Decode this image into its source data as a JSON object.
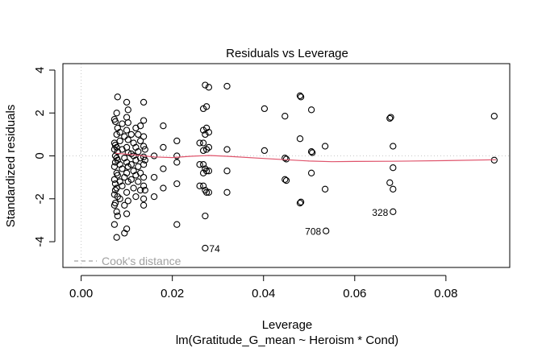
{
  "chart_data": {
    "type": "scatter",
    "title": "Residuals vs Leverage",
    "xlabel": "Leverage",
    "ylabel": "Standardized residuals",
    "subtitle": "lm(Gratitude_G_mean ~ Heroism * Cond)",
    "xlim": [
      -0.004,
      0.094
    ],
    "ylim": [
      -5.2,
      4.3
    ],
    "xticks": [
      0.0,
      0.02,
      0.04,
      0.06,
      0.08
    ],
    "xtick_labels": [
      "0.00",
      "0.02",
      "0.04",
      "0.06",
      "0.08"
    ],
    "yticks": [
      -4,
      -2,
      0,
      2,
      4
    ],
    "ytick_labels": [
      "-4",
      "-2",
      "0",
      "2",
      "4"
    ],
    "grid": false,
    "legend": {
      "label": "Cook's distance",
      "placement": "bottom-left",
      "color": "#a0a0a0",
      "style": "dashed"
    },
    "reference_lines": {
      "color": "#c8c8c8",
      "style": "dotted",
      "x": 0,
      "y": 0
    },
    "point_color": "#000000",
    "smoother_color": "#df536b",
    "smoother": {
      "x": [
        0.0075,
        0.01,
        0.013,
        0.016,
        0.02,
        0.024,
        0.028,
        0.032,
        0.04,
        0.045,
        0.05,
        0.055,
        0.06,
        0.068,
        0.08,
        0.091
      ],
      "y": [
        0.12,
        0.08,
        0.02,
        -0.05,
        -0.08,
        -0.02,
        0.02,
        -0.02,
        -0.12,
        -0.18,
        -0.24,
        -0.27,
        -0.26,
        -0.25,
        -0.22,
        -0.18
      ]
    },
    "point_labels": [
      {
        "text": "74",
        "x": 0.0272,
        "y": -4.3,
        "side": "right"
      },
      {
        "text": "708",
        "x": 0.0537,
        "y": -3.5,
        "side": "left"
      },
      {
        "text": "328",
        "x": 0.0684,
        "y": -2.6,
        "side": "left"
      }
    ],
    "points": [
      [
        0.0073,
        1.7
      ],
      [
        0.0073,
        0.6
      ],
      [
        0.0073,
        0.3
      ],
      [
        0.0073,
        -0.5
      ],
      [
        0.0073,
        -1.1
      ],
      [
        0.0073,
        -1.8
      ],
      [
        0.0073,
        -2.3
      ],
      [
        0.0073,
        -3.2
      ],
      [
        0.0075,
        1.6
      ],
      [
        0.0075,
        0.5
      ],
      [
        0.0075,
        0.0
      ],
      [
        0.0075,
        -0.3
      ],
      [
        0.0075,
        -1.3
      ],
      [
        0.0075,
        -1.6
      ],
      [
        0.0075,
        -2.2
      ],
      [
        0.0078,
        2.0
      ],
      [
        0.0078,
        1.0
      ],
      [
        0.0078,
        0.4
      ],
      [
        0.0078,
        -0.1
      ],
      [
        0.0078,
        -0.8
      ],
      [
        0.0078,
        -1.5
      ],
      [
        0.0078,
        -2.6
      ],
      [
        0.0078,
        -3.8
      ],
      [
        0.008,
        2.75
      ],
      [
        0.008,
        1.3
      ],
      [
        0.008,
        0.2
      ],
      [
        0.008,
        -0.2
      ],
      [
        0.008,
        -0.9
      ],
      [
        0.008,
        -1.9
      ],
      [
        0.008,
        -2.8
      ],
      [
        0.0085,
        1.1
      ],
      [
        0.0085,
        0.7
      ],
      [
        0.0085,
        -0.4
      ],
      [
        0.0085,
        -1.2
      ],
      [
        0.0085,
        -2.0
      ],
      [
        0.009,
        1.5
      ],
      [
        0.009,
        0.3
      ],
      [
        0.009,
        -0.6
      ],
      [
        0.009,
        -1.4
      ],
      [
        0.0095,
        0.9
      ],
      [
        0.0095,
        -0.1
      ],
      [
        0.0095,
        -1.0
      ],
      [
        0.0095,
        -2.3
      ],
      [
        0.0095,
        -3.6
      ],
      [
        0.01,
        2.5
      ],
      [
        0.01,
        1.8
      ],
      [
        0.01,
        1.2
      ],
      [
        0.01,
        0.4
      ],
      [
        0.01,
        -0.3
      ],
      [
        0.01,
        -0.8
      ],
      [
        0.01,
        -1.7
      ],
      [
        0.01,
        -2.7
      ],
      [
        0.01,
        -3.4
      ],
      [
        0.0103,
        2.15
      ],
      [
        0.0103,
        1.55
      ],
      [
        0.0103,
        0.75
      ],
      [
        0.0103,
        0.15
      ],
      [
        0.0103,
        -0.5
      ],
      [
        0.0103,
        -1.2
      ],
      [
        0.0103,
        -2.1
      ],
      [
        0.011,
        1.0
      ],
      [
        0.011,
        0.1
      ],
      [
        0.011,
        -0.4
      ],
      [
        0.011,
        -1.1
      ],
      [
        0.0115,
        0.6
      ],
      [
        0.0115,
        0.0
      ],
      [
        0.0115,
        -0.7
      ],
      [
        0.0115,
        -1.5
      ],
      [
        0.012,
        1.3
      ],
      [
        0.012,
        0.4
      ],
      [
        0.012,
        -0.2
      ],
      [
        0.012,
        -0.9
      ],
      [
        0.012,
        -1.9
      ],
      [
        0.0125,
        1.0
      ],
      [
        0.0125,
        0.2
      ],
      [
        0.0125,
        -0.5
      ],
      [
        0.0125,
        -1.2
      ],
      [
        0.013,
        1.4
      ],
      [
        0.013,
        0.7
      ],
      [
        0.013,
        -0.1
      ],
      [
        0.013,
        -0.8
      ],
      [
        0.013,
        -1.6
      ],
      [
        0.0137,
        2.5
      ],
      [
        0.0137,
        1.65
      ],
      [
        0.0137,
        0.9
      ],
      [
        0.0137,
        0.45
      ],
      [
        0.0137,
        -0.05
      ],
      [
        0.0137,
        -0.4
      ],
      [
        0.0137,
        -1.0
      ],
      [
        0.0137,
        -1.4
      ],
      [
        0.0137,
        -2.0
      ],
      [
        0.0137,
        -2.3
      ],
      [
        0.014,
        0.3
      ],
      [
        0.014,
        -0.2
      ],
      [
        0.014,
        -1.6
      ],
      [
        0.016,
        0.0
      ],
      [
        0.016,
        -1.0
      ],
      [
        0.016,
        -1.9
      ],
      [
        0.018,
        1.4
      ],
      [
        0.018,
        0.4
      ],
      [
        0.018,
        -0.6
      ],
      [
        0.018,
        -1.5
      ],
      [
        0.021,
        0.7
      ],
      [
        0.021,
        0.0
      ],
      [
        0.021,
        -0.3
      ],
      [
        0.021,
        -1.3
      ],
      [
        0.021,
        -3.2
      ],
      [
        0.026,
        0.6
      ],
      [
        0.026,
        -0.4
      ],
      [
        0.026,
        -1.4
      ],
      [
        0.0268,
        2.2
      ],
      [
        0.0268,
        1.2
      ],
      [
        0.0268,
        0.6
      ],
      [
        0.0268,
        0.25
      ],
      [
        0.0268,
        -0.4
      ],
      [
        0.0268,
        -0.8
      ],
      [
        0.0268,
        -1.4
      ],
      [
        0.0272,
        3.3
      ],
      [
        0.0272,
        1.0
      ],
      [
        0.0272,
        -0.6
      ],
      [
        0.0272,
        -1.6
      ],
      [
        0.0272,
        -2.8
      ],
      [
        0.0272,
        -4.3
      ],
      [
        0.0275,
        2.3
      ],
      [
        0.0275,
        1.3
      ],
      [
        0.0275,
        0.3
      ],
      [
        0.0275,
        -0.7
      ],
      [
        0.0275,
        -1.7
      ],
      [
        0.028,
        3.2
      ],
      [
        0.028,
        1.1
      ],
      [
        0.028,
        0.4
      ],
      [
        0.028,
        -0.7
      ],
      [
        0.028,
        -1.7
      ],
      [
        0.032,
        3.25
      ],
      [
        0.032,
        0.3
      ],
      [
        0.032,
        -0.7
      ],
      [
        0.032,
        -1.7
      ],
      [
        0.0402,
        2.2
      ],
      [
        0.0402,
        0.25
      ],
      [
        0.0447,
        1.85
      ],
      [
        0.0447,
        -0.1
      ],
      [
        0.0447,
        -1.1
      ],
      [
        0.045,
        -0.15
      ],
      [
        0.045,
        -1.15
      ],
      [
        0.048,
        2.8
      ],
      [
        0.048,
        0.8
      ],
      [
        0.048,
        -2.2
      ],
      [
        0.0482,
        2.75
      ],
      [
        0.0482,
        -2.15
      ],
      [
        0.0505,
        2.15
      ],
      [
        0.0505,
        0.2
      ],
      [
        0.0505,
        -0.8
      ],
      [
        0.0507,
        0.15
      ],
      [
        0.0535,
        0.45
      ],
      [
        0.0535,
        -1.55
      ],
      [
        0.0537,
        -3.5
      ],
      [
        0.0677,
        1.75
      ],
      [
        0.0677,
        -1.25
      ],
      [
        0.0679,
        1.8
      ],
      [
        0.0684,
        0.45
      ],
      [
        0.0684,
        -0.55
      ],
      [
        0.0684,
        -1.55
      ],
      [
        0.0684,
        -2.6
      ],
      [
        0.0906,
        1.85
      ],
      [
        0.0906,
        -0.2
      ]
    ]
  }
}
